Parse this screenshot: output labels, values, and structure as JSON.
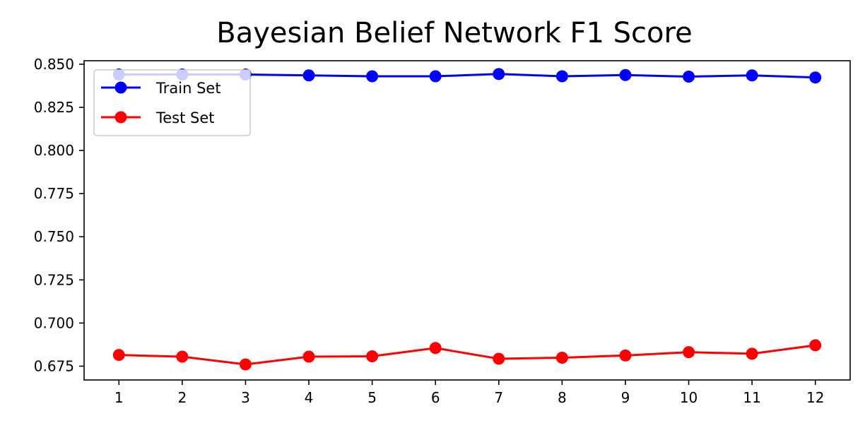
{
  "chart_data": {
    "type": "line",
    "title": "Bayesian Belief Network F1 Score",
    "xlabel": "",
    "ylabel": "",
    "x": [
      1,
      2,
      3,
      4,
      5,
      6,
      7,
      8,
      9,
      10,
      11,
      12
    ],
    "x_tick_labels": [
      "1",
      "2",
      "3",
      "4",
      "5",
      "6",
      "7",
      "8",
      "9",
      "10",
      "11",
      "12"
    ],
    "y_ticks": [
      0.675,
      0.7,
      0.725,
      0.75,
      0.775,
      0.8,
      0.825,
      0.85
    ],
    "y_tick_labels": [
      "0.675",
      "0.700",
      "0.725",
      "0.750",
      "0.775",
      "0.800",
      "0.825",
      "0.850"
    ],
    "xlim": [
      0.45,
      12.55
    ],
    "ylim": [
      0.667,
      0.852
    ],
    "grid": false,
    "legend_position": "upper-left",
    "series": [
      {
        "name": "Train Set",
        "color": "#0000ff",
        "marker": "circle",
        "values": [
          0.844,
          0.844,
          0.844,
          0.8435,
          0.843,
          0.843,
          0.8443,
          0.843,
          0.8437,
          0.8428,
          0.8435,
          0.8423
        ]
      },
      {
        "name": "Test Set",
        "color": "#ff0000",
        "marker": "circle",
        "values": [
          0.6815,
          0.6805,
          0.676,
          0.6805,
          0.6807,
          0.6855,
          0.6793,
          0.6799,
          0.6812,
          0.6831,
          0.6822,
          0.6871
        ]
      }
    ]
  }
}
